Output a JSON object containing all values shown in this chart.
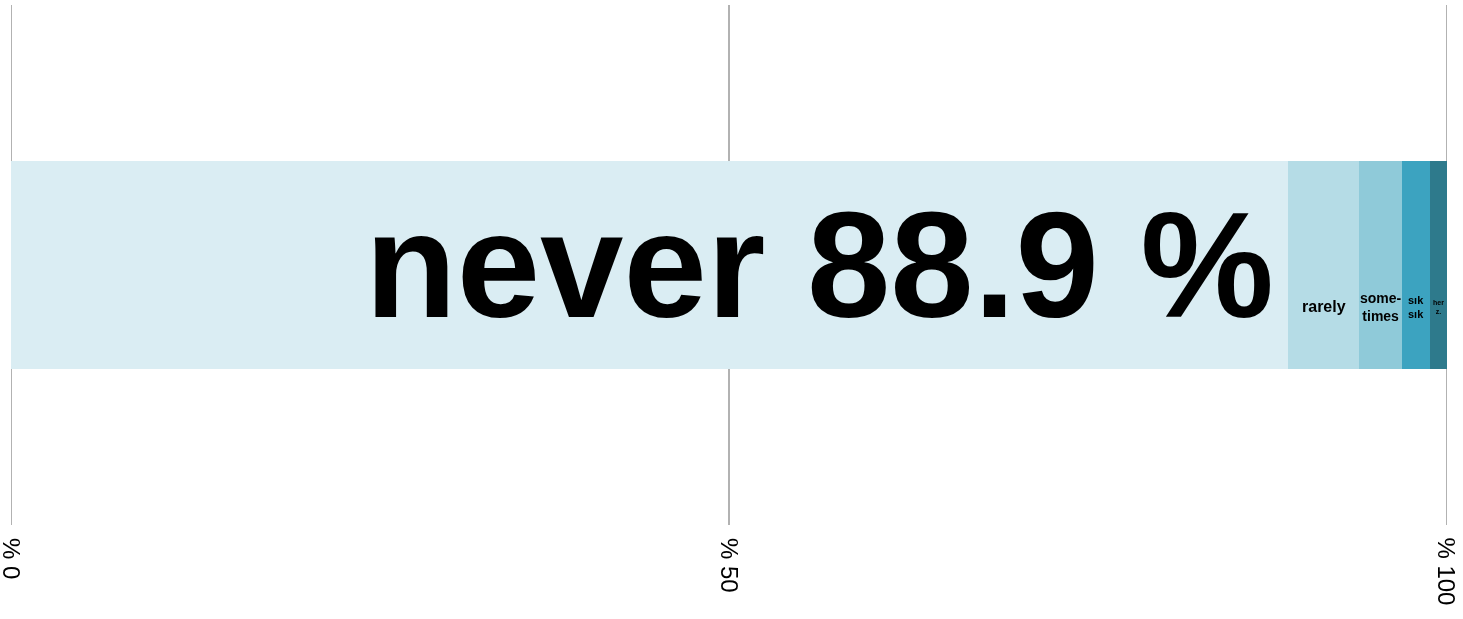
{
  "chart_data": {
    "type": "bar",
    "orientation": "horizontal",
    "stacked": true,
    "categories": [
      null
    ],
    "series": [
      {
        "name": "never",
        "color": "#daedf3",
        "values": [
          88.9
        ],
        "value_labels": [
          "88.9 %"
        ]
      },
      {
        "name": "rarely",
        "color": "#b5dce6",
        "values": [
          5.0
        ]
      },
      {
        "name": "some-\ntimes",
        "color": "#8fcad9",
        "values": [
          3.0
        ]
      },
      {
        "name": "sık\nsık",
        "color": "#3ca3c0",
        "values": [
          1.9
        ]
      },
      {
        "name": "her\nz.",
        "color": "#2e7a8c",
        "values": [
          1.2
        ]
      }
    ],
    "xlim": [
      0,
      100
    ],
    "xticks": [
      {
        "value": 0,
        "label": "% 0"
      },
      {
        "value": 50,
        "label": "% 50"
      },
      {
        "value": 100,
        "label": "% 100"
      }
    ],
    "grid": "x",
    "legend": false,
    "tick_labels": "x"
  }
}
